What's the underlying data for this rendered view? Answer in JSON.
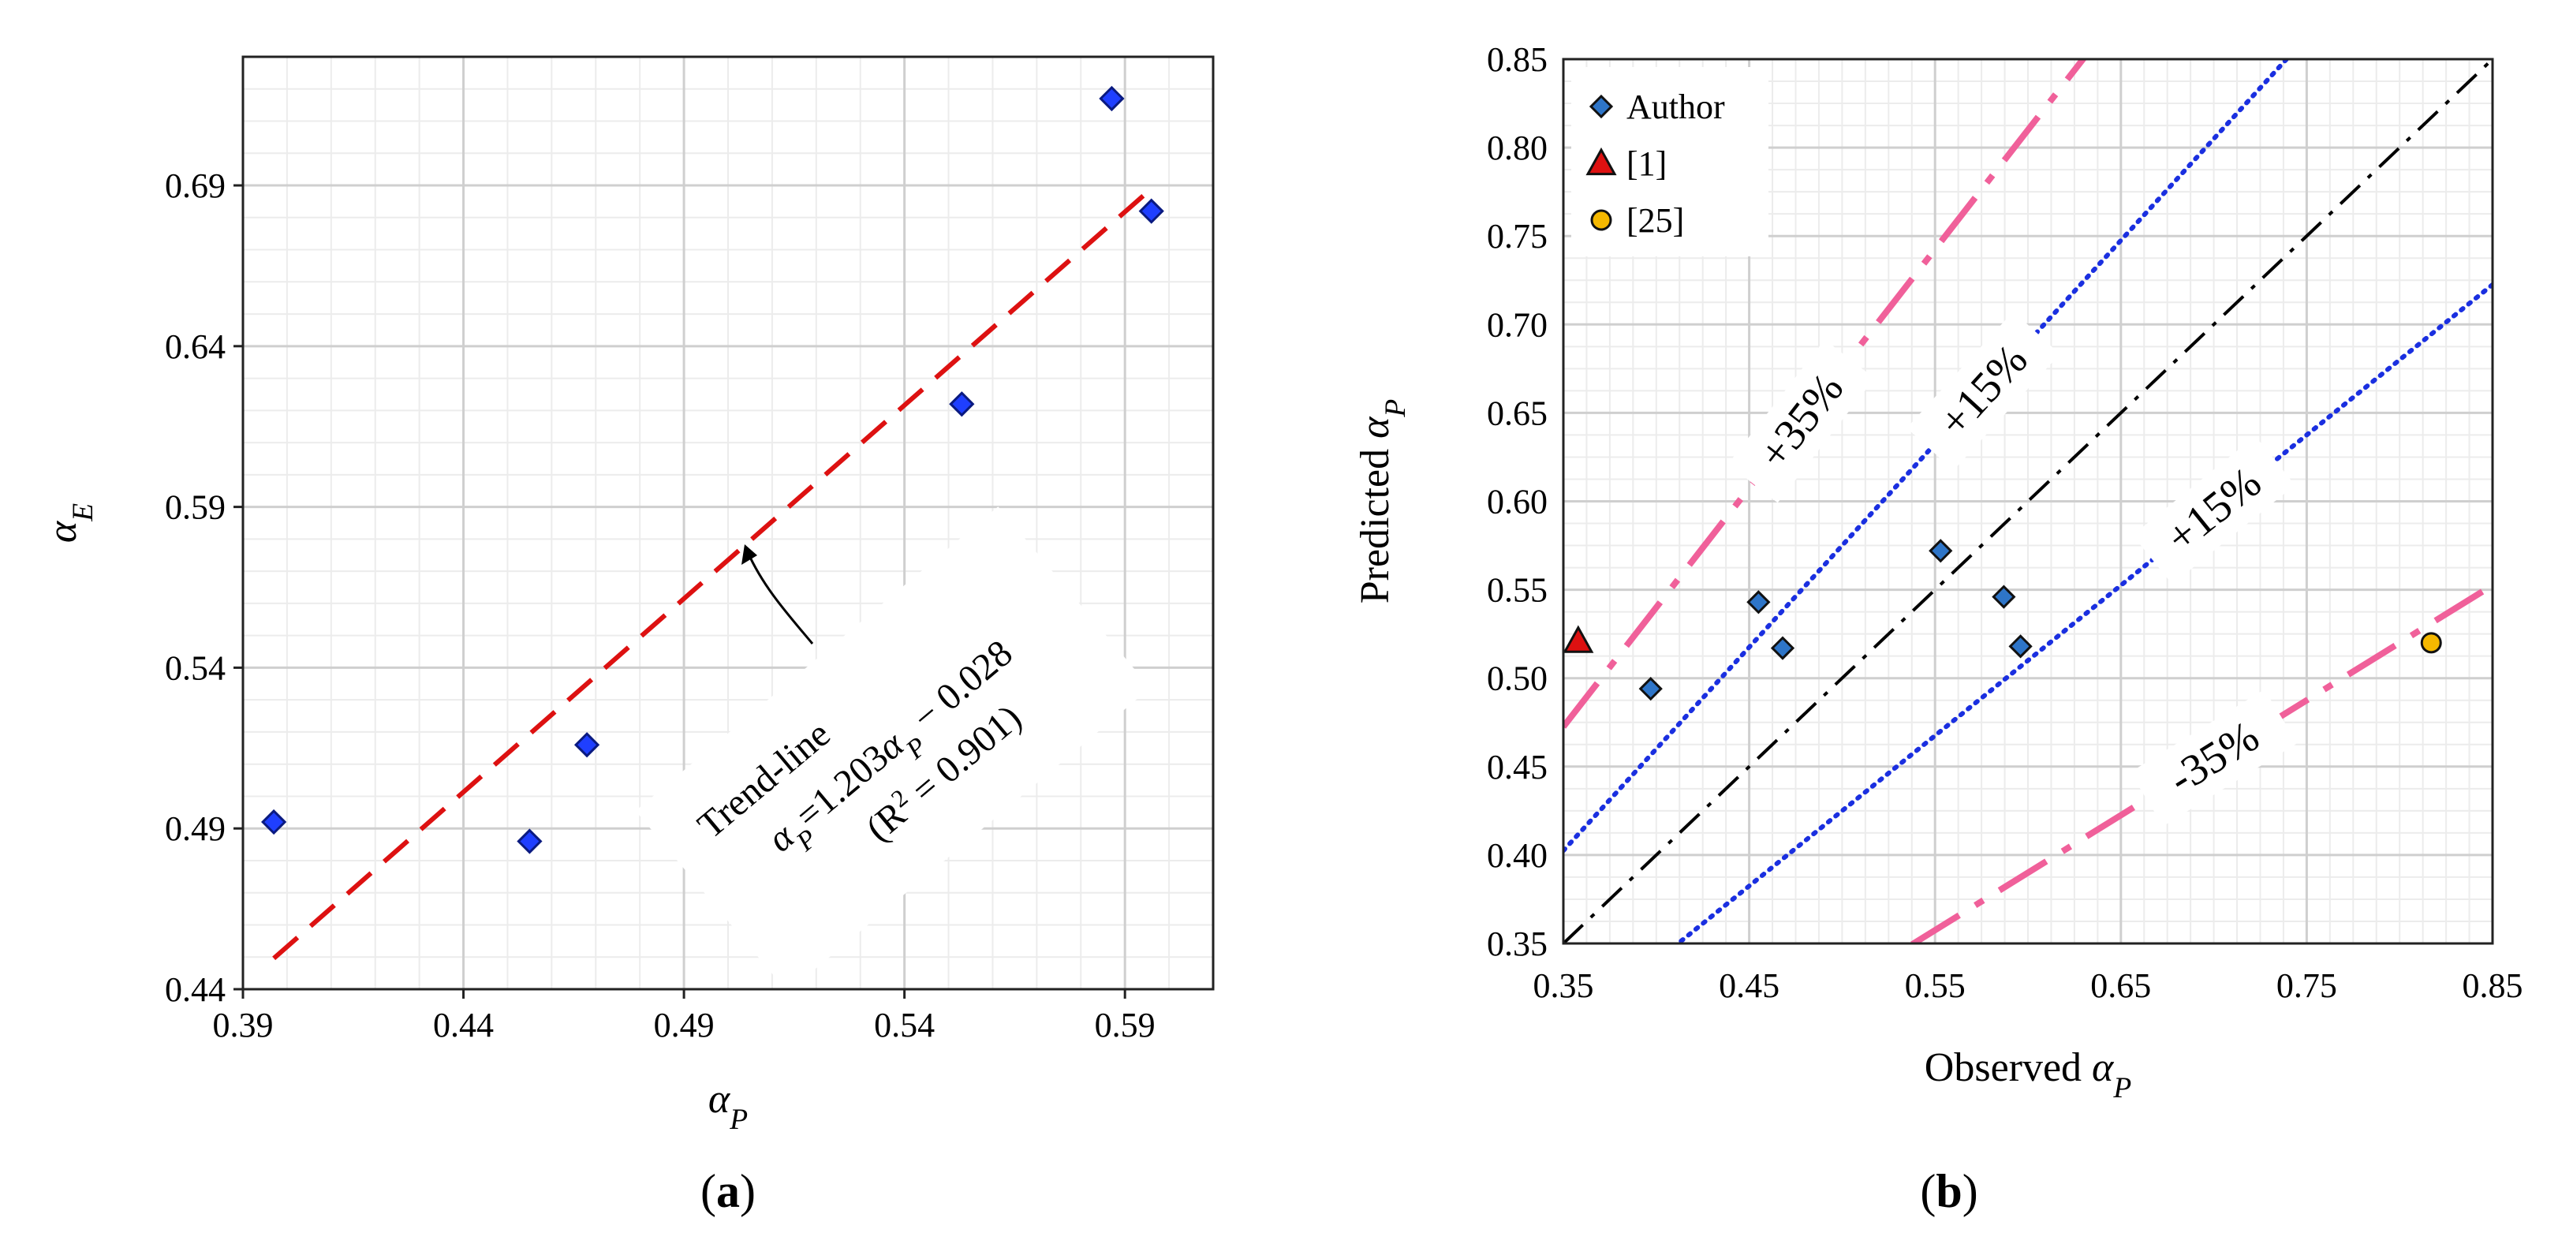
{
  "chart_data": [
    {
      "type": "scatter",
      "panel": "(a)",
      "xlabel": "αP",
      "ylabel": "αE",
      "xlim": [
        0.39,
        0.61
      ],
      "ylim": [
        0.44,
        0.73
      ],
      "xticks": [
        "0.39",
        "0.44",
        "0.49",
        "0.54",
        "0.59"
      ],
      "yticks": [
        "0.44",
        "0.49",
        "0.54",
        "0.59",
        "0.64",
        "0.69"
      ],
      "grid": true,
      "series": [
        {
          "name": "data",
          "marker": "diamond",
          "color": "#1f3fff",
          "points": [
            {
              "x": 0.397,
              "y": 0.492
            },
            {
              "x": 0.455,
              "y": 0.486
            },
            {
              "x": 0.468,
              "y": 0.516
            },
            {
              "x": 0.553,
              "y": 0.622
            },
            {
              "x": 0.587,
              "y": 0.717
            },
            {
              "x": 0.596,
              "y": 0.682
            }
          ]
        }
      ],
      "trend_line": {
        "slope": 1.203,
        "intercept": -0.028,
        "x_range": [
          0.397,
          0.596
        ],
        "color": "#dd1111"
      },
      "annotation": {
        "line1": "Trend-line",
        "line2": "αP=1.203αP − 0.028",
        "line3": "(R² = 0.901)"
      }
    },
    {
      "type": "scatter",
      "panel": "(b)",
      "xlabel": "Observed αP",
      "ylabel": "Predicted αP",
      "xlim": [
        0.35,
        0.85
      ],
      "ylim": [
        0.35,
        0.85
      ],
      "xticks": [
        "0.35",
        "0.45",
        "0.55",
        "0.65",
        "0.75",
        "0.85"
      ],
      "yticks": [
        "0.35",
        "0.40",
        "0.45",
        "0.50",
        "0.55",
        "0.60",
        "0.65",
        "0.70",
        "0.75",
        "0.80",
        "0.85"
      ],
      "grid": true,
      "legend_position": "top-left",
      "series": [
        {
          "name": "Author",
          "marker": "diamond",
          "color": "#2e75c8",
          "points": [
            {
              "x": 0.397,
              "y": 0.494
            },
            {
              "x": 0.455,
              "y": 0.543
            },
            {
              "x": 0.468,
              "y": 0.517
            },
            {
              "x": 0.553,
              "y": 0.572
            },
            {
              "x": 0.587,
              "y": 0.546
            },
            {
              "x": 0.596,
              "y": 0.518
            }
          ]
        },
        {
          "name": "[1]",
          "marker": "triangle",
          "color": "#dd1111",
          "points": [
            {
              "x": 0.358,
              "y": 0.521
            }
          ]
        },
        {
          "name": "[25]",
          "marker": "circle",
          "color": "#f5b800",
          "points": [
            {
              "x": 0.817,
              "y": 0.52
            }
          ]
        }
      ],
      "reference_lines": [
        {
          "name": "equality",
          "factor": 1.0,
          "color": "#000000",
          "label": ""
        },
        {
          "name": "upper-15",
          "factor": 1.15,
          "color": "#1a2fe0",
          "label": "+15%"
        },
        {
          "name": "lower-15",
          "factor": 0.85,
          "color": "#1a2fe0",
          "label": "+15%"
        },
        {
          "name": "upper-35",
          "factor": 1.35,
          "color": "#f0609a",
          "label": "+35%"
        },
        {
          "name": "lower-35",
          "factor": 0.65,
          "color": "#f0609a",
          "label": "-35%"
        }
      ]
    }
  ]
}
